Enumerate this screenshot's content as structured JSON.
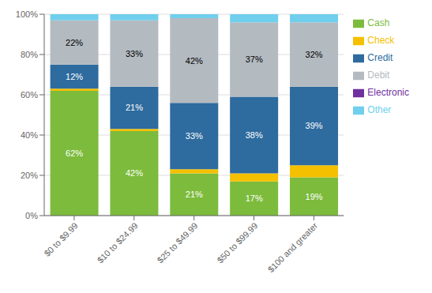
{
  "chart_data": {
    "type": "bar",
    "stacked": true,
    "grid": true,
    "legend": "right",
    "categories": [
      "$0 to $9.99",
      "$10 to $24.99",
      "$25 to $49.99",
      "$50 to $99.99",
      "$100 and greater"
    ],
    "series": [
      {
        "name": "Cash",
        "color": "#7CBB3C",
        "values": [
          62,
          42,
          21,
          17,
          19
        ],
        "value_labels": [
          "62%",
          "42%",
          "21%",
          "17%",
          "19%"
        ]
      },
      {
        "name": "Check",
        "color": "#F5C000",
        "values": [
          1,
          1,
          2,
          4,
          6
        ]
      },
      {
        "name": "Credit",
        "color": "#2E6B9E",
        "values": [
          12,
          21,
          33,
          38,
          39
        ],
        "value_labels": [
          "12%",
          "21%",
          "33%",
          "38%",
          "39%"
        ]
      },
      {
        "name": "Debit",
        "color": "#B3BAC0",
        "values": [
          22,
          33,
          42,
          37,
          32
        ],
        "value_labels": [
          "22%",
          "33%",
          "42%",
          "37%",
          "32%"
        ]
      },
      {
        "name": "Electronic",
        "color": "#7030A0",
        "values": [
          0,
          0,
          0,
          0,
          0
        ]
      },
      {
        "name": "Other",
        "color": "#70CFEC",
        "values": [
          3,
          3,
          2,
          4,
          4
        ]
      }
    ],
    "ylim": [
      0,
      100
    ],
    "yticks": [
      {
        "value": 0,
        "label": "0%"
      },
      {
        "value": 20,
        "label": "20%"
      },
      {
        "value": 40,
        "label": "40%"
      },
      {
        "value": 60,
        "label": "60%"
      },
      {
        "value": 80,
        "label": "80%"
      },
      {
        "value": 100,
        "label": "100%"
      }
    ]
  }
}
